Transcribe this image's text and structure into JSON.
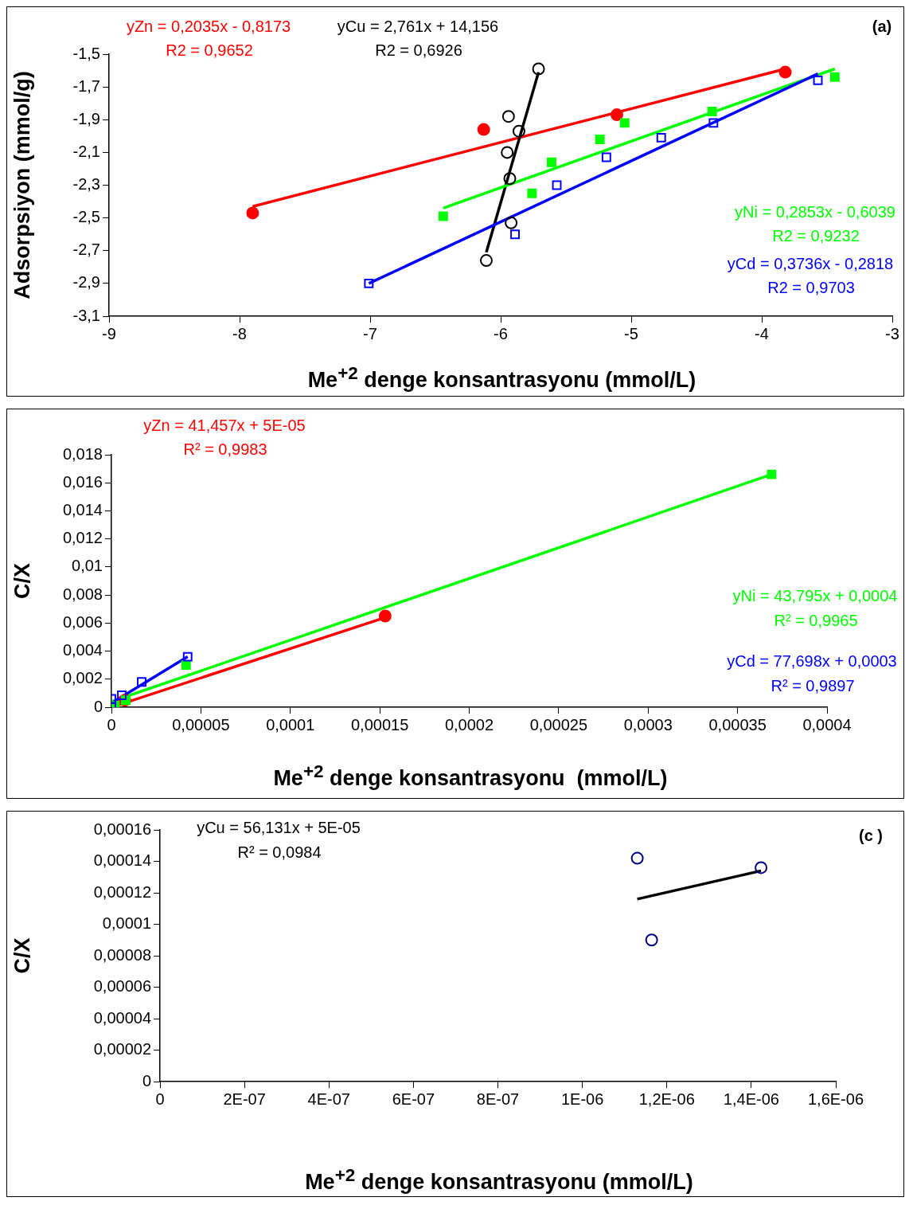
{
  "chart_data": [
    {
      "type": "scatter",
      "xlabel": "Me$^{+2}$ denge konsantrasyonu (mmol/L)",
      "ylabel": "Adsorpsiyon (mmol/g)",
      "xlim": [
        -9,
        -3
      ],
      "xticks": [
        -9,
        -8,
        -7,
        -6,
        -5,
        -4,
        -3
      ],
      "ylim": [
        -3.1,
        -1.5
      ],
      "yticks": [
        {
          "value": -3.1,
          "label": "-3,1"
        },
        {
          "value": -2.9,
          "label": "-2,9"
        },
        {
          "value": -2.7,
          "label": "-2,7"
        },
        {
          "value": -2.5,
          "label": "-2,5"
        },
        {
          "value": -2.3,
          "label": "-2,3"
        },
        {
          "value": -2.1,
          "label": "-2,1"
        },
        {
          "value": -1.9,
          "label": "-1,9"
        },
        {
          "value": -1.7,
          "label": "-1,7"
        },
        {
          "value": -1.5,
          "label": "-1,5"
        }
      ],
      "annotations": [
        "yZn = 0,2035x - 0,8173",
        "R2 = 0,9652",
        "yCu = 2,761x + 14,156",
        "R2 = 0,6926",
        "yNi = 0,2853x - 0,6039",
        "R2 = 0,9232",
        "yCd = 0,3736x - 0,2818",
        "R2 = 0,9703",
        "(a)"
      ],
      "series": [
        {
          "type": "scatter",
          "color": "#ff0000",
          "marker": "circle",
          "x": [
            -7.9,
            -6.13,
            -5.11,
            -3.82
          ],
          "values": [
            -2.47,
            -1.96,
            -1.87,
            -1.61
          ]
        },
        {
          "type": "line",
          "color": "#ff0000",
          "marker": "none",
          "x": [
            -7.9,
            -3.82
          ],
          "values": [
            -2.43,
            -1.59
          ]
        },
        {
          "type": "scatter",
          "color": "#000000",
          "marker": "circle",
          "x": [
            -5.71,
            -5.94,
            -5.86,
            -5.95,
            -5.93,
            -5.92,
            -6.11
          ],
          "values": [
            -1.59,
            -1.88,
            -1.97,
            -2.1,
            -2.26,
            -2.53,
            -2.76
          ]
        },
        {
          "type": "line",
          "color": "#000000",
          "marker": "none",
          "x": [
            -6.11,
            -5.71
          ],
          "values": [
            -2.71,
            -1.61
          ]
        },
        {
          "type": "scatter",
          "color": "#00ff00",
          "marker": "square",
          "x": [
            -6.44,
            -5.76,
            -5.61,
            -5.24,
            -5.05,
            -4.38,
            -3.44
          ],
          "values": [
            -2.49,
            -2.35,
            -2.16,
            -2.02,
            -1.92,
            -1.85,
            -1.64
          ]
        },
        {
          "type": "line",
          "color": "#00ff00",
          "marker": "none",
          "x": [
            -6.44,
            -3.44
          ],
          "values": [
            -2.44,
            -1.59
          ]
        },
        {
          "type": "scatter",
          "color": "#0000ff",
          "marker": "square",
          "x": [
            -7.01,
            -5.89,
            -5.57,
            -5.19,
            -4.77,
            -4.37,
            -3.57
          ],
          "values": [
            -2.9,
            -2.6,
            -2.3,
            -2.13,
            -2.01,
            -1.92,
            -1.66
          ]
        },
        {
          "type": "line",
          "color": "#0000ff",
          "marker": "none",
          "x": [
            -7.01,
            -3.57
          ],
          "values": [
            -2.9,
            -1.62
          ]
        }
      ]
    },
    {
      "type": "scatter",
      "xlabel": "Me$^{+2}$ denge konsantrasyonu  (mmol/L)",
      "ylabel": "C/X",
      "xlim": [
        0,
        0.0004
      ],
      "xticks": [
        0,
        {
          "value": 5e-05,
          "label": "0,00005"
        },
        {
          "value": 0.0001,
          "label": "0,0001"
        },
        {
          "value": 0.00015,
          "label": "0,00015"
        },
        {
          "value": 0.0002,
          "label": "0,0002"
        },
        {
          "value": 0.00025,
          "label": "0,00025"
        },
        {
          "value": 0.0003,
          "label": "0,0003"
        },
        {
          "value": 0.00035,
          "label": "0,00035"
        },
        {
          "value": 0.0004,
          "label": "0,0004"
        }
      ],
      "ylim": [
        0,
        0.018
      ],
      "yticks": [
        0,
        {
          "value": 0.002,
          "label": "0,002"
        },
        {
          "value": 0.004,
          "label": "0,004"
        },
        {
          "value": 0.006,
          "label": "0,006"
        },
        {
          "value": 0.008,
          "label": "0,008"
        },
        {
          "value": 0.01,
          "label": "0,01"
        },
        {
          "value": 0.012,
          "label": "0,012"
        },
        {
          "value": 0.014,
          "label": "0,014"
        },
        {
          "value": 0.016,
          "label": "0,016"
        },
        {
          "value": 0.018,
          "label": "0,018"
        }
      ],
      "annotations": [
        "yZn = 41,457x + 5E-05",
        "R² = 0,9983",
        "yNi = 43,795x + 0,0004",
        "R² = 0,9965",
        "yCd = 77,698x + 0,0003",
        "R² = 0,9897"
      ],
      "series": [
        {
          "type": "scatter",
          "color": "#ff0000",
          "marker": "circle",
          "x": [
            7.5e-06,
            0.000153
          ],
          "values": [
            0.0005,
            0.0065
          ]
        },
        {
          "type": "line",
          "color": "#ff0000",
          "marker": "none",
          "x": [
            0,
            0.000153
          ],
          "values": [
            0,
            0.0064
          ]
        },
        {
          "type": "scatter",
          "color": "#00ff00",
          "marker": "square",
          "x": [
            2e-06,
            8e-06,
            4.17e-05,
            0.000369
          ],
          "values": [
            0.0001,
            0.0005,
            0.003,
            0.0166
          ]
        },
        {
          "type": "line",
          "color": "#00ff00",
          "marker": "none",
          "x": [
            0,
            0.000369
          ],
          "values": [
            0.0004,
            0.0166
          ]
        },
        {
          "type": "scatter",
          "color": "#0000ff",
          "marker": "square",
          "x": [
            0,
            0,
            5.8e-06,
            1.69e-05,
            4.26e-05
          ],
          "values": [
            0,
            0.0006,
            0.00085,
            0.0018,
            0.0036
          ]
        },
        {
          "type": "line",
          "color": "#0000ff",
          "marker": "none",
          "x": [
            0,
            4.26e-05
          ],
          "values": [
            0.0003,
            0.0036
          ]
        }
      ]
    },
    {
      "type": "scatter",
      "xlabel": "Me$^{+2}$ denge konsantrasyonu (mmol/L)",
      "ylabel": "C/X",
      "xlim": [
        0,
        1.6e-06
      ],
      "xticks": [
        0,
        {
          "value": 2e-07,
          "label": "2E-07"
        },
        {
          "value": 4e-07,
          "label": "4E-07"
        },
        {
          "value": 6e-07,
          "label": "6E-07"
        },
        {
          "value": 8e-07,
          "label": "8E-07"
        },
        {
          "value": 1e-06,
          "label": "1E-06"
        },
        {
          "value": 1.2e-06,
          "label": "1,2E-06"
        },
        {
          "value": 1.4e-06,
          "label": "1,4E-06"
        },
        {
          "value": 1.6e-06,
          "label": "1,6E-06"
        }
      ],
      "ylim": [
        0,
        0.00016
      ],
      "yticks": [
        0,
        {
          "value": 2e-05,
          "label": "0,00002"
        },
        {
          "value": 4e-05,
          "label": "0,00004"
        },
        {
          "value": 6e-05,
          "label": "0,00006"
        },
        {
          "value": 8e-05,
          "label": "0,00008"
        },
        {
          "value": 0.0001,
          "label": "0,0001"
        },
        {
          "value": 0.00012,
          "label": "0,00012"
        },
        {
          "value": 0.00014,
          "label": "0,00014"
        },
        {
          "value": 0.00016,
          "label": "0,00016"
        }
      ],
      "annotations": [
        "yCu = 56,131x + 5E-05",
        "R² = 0,0984",
        "(c )"
      ],
      "series": [
        {
          "type": "scatter",
          "color": "#000080",
          "marker": "circle",
          "x": [
            1.13e-06,
            1.164e-06,
            1.423e-06
          ],
          "values": [
            0.000142,
            9e-05,
            0.000136
          ]
        },
        {
          "type": "line",
          "color": "#000000",
          "marker": "none",
          "x": [
            1.13e-06,
            1.423e-06
          ],
          "values": [
            0.000116,
            0.000134
          ]
        }
      ]
    }
  ]
}
